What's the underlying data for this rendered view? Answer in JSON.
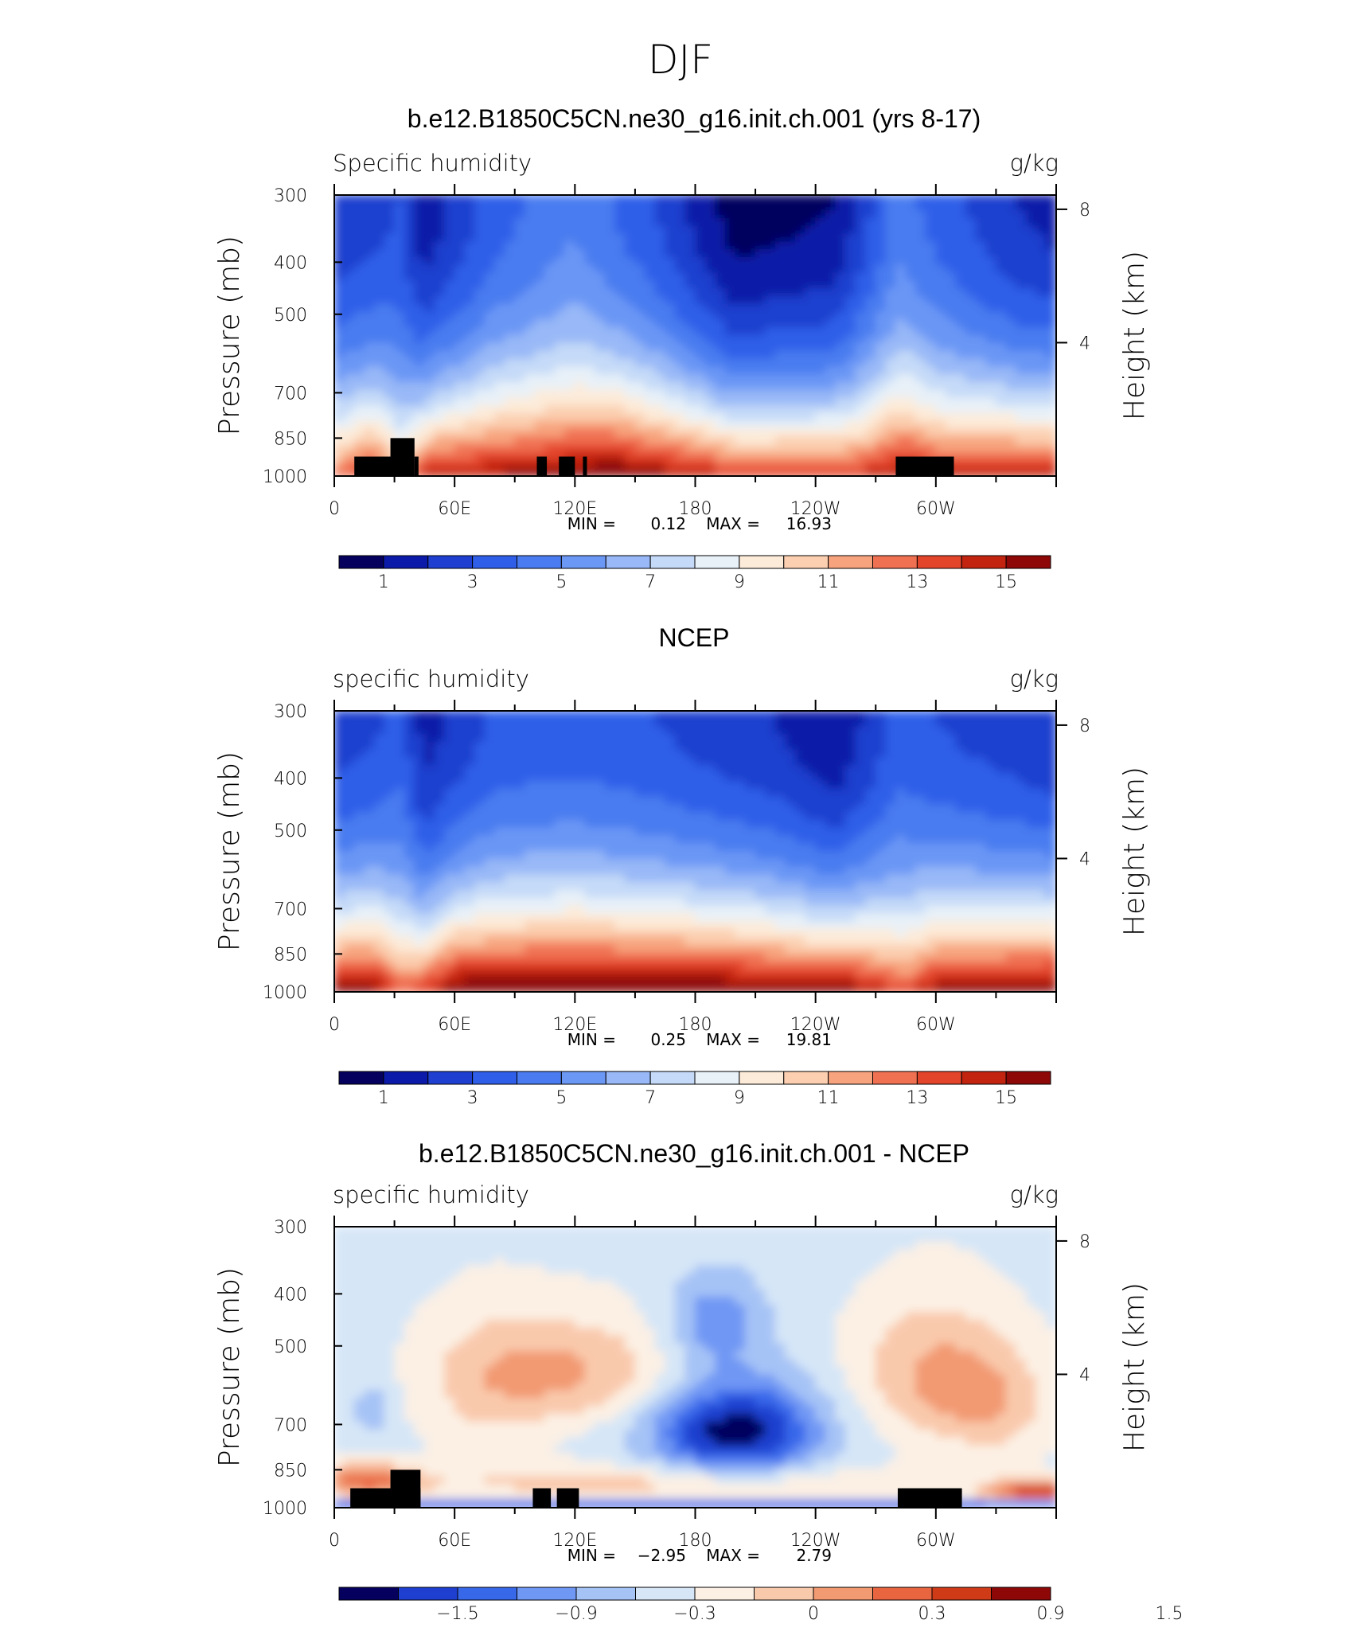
{
  "title": "DJF",
  "colors": {
    "abs": [
      "#05005e",
      "#0b1aa8",
      "#1e3fcf",
      "#2f5ee8",
      "#4a7bf0",
      "#6b97f5",
      "#98b8f7",
      "#c5daf8",
      "#e8f1f8",
      "#fdebd9",
      "#fbcfb0",
      "#f7a47e",
      "#f07152",
      "#e3452b",
      "#c3240f",
      "#8e0808"
    ],
    "diff": [
      "#05005e",
      "#1e3fcf",
      "#3868ea",
      "#6f97f4",
      "#a6c3f6",
      "#d6e6f7",
      "#fcf0e4",
      "#f9c9ac",
      "#f29a72",
      "#e8653f",
      "#cf3a17",
      "#8e0808"
    ],
    "land": "#000000"
  },
  "common": {
    "pressure_ticks": [
      "300",
      "400",
      "500",
      "700",
      "850",
      "1000"
    ],
    "height_ticks": [
      "8",
      "4"
    ],
    "lon_ticks": [
      "0",
      "60E",
      "120E",
      "180",
      "120W",
      "60W"
    ],
    "ylabel": "Pressure (mb)",
    "ylabel_right": "Height (km)",
    "units": "g/kg"
  },
  "chart_data": [
    {
      "type": "heatmap",
      "title": "b.e12.B1850C5CN.ne30_g16.init.ch.001 (yrs 8-17)",
      "field": "Specific humidity",
      "units": "g/kg",
      "x_range": [
        0,
        360
      ],
      "y_range_mb": [
        300,
        1000
      ],
      "min": "0.12",
      "max": "16.93",
      "min_label": "MIN =",
      "max_label": "MAX =",
      "colorbar_labels": [
        "1",
        "3",
        "5",
        "7",
        "9",
        "11",
        "13",
        "15"
      ],
      "surface_values": [
        [
          0,
          12.5
        ],
        [
          20,
          14.5
        ],
        [
          33,
          11
        ],
        [
          40,
          13
        ],
        [
          50,
          15
        ],
        [
          90,
          15.5
        ],
        [
          140,
          16.5
        ],
        [
          200,
          14
        ],
        [
          260,
          14
        ],
        [
          285,
          15.5
        ],
        [
          300,
          14.5
        ],
        [
          359,
          15
        ]
      ],
      "upper_values": [
        [
          0,
          2.2
        ],
        [
          20,
          2.6
        ],
        [
          33,
          3.0
        ],
        [
          45,
          1.2
        ],
        [
          80,
          3.5
        ],
        [
          120,
          4.8
        ],
        [
          160,
          3.0
        ],
        [
          200,
          0.4
        ],
        [
          250,
          1.0
        ],
        [
          282,
          4.5
        ],
        [
          300,
          3.6
        ],
        [
          340,
          2.0
        ],
        [
          359,
          1.6
        ]
      ],
      "orography": [
        [
          10,
          30,
          1000,
          920
        ],
        [
          28,
          40,
          1000,
          850
        ],
        [
          40,
          42,
          1000,
          920
        ],
        [
          101,
          106,
          1000,
          920
        ],
        [
          112,
          120,
          1000,
          920
        ],
        [
          124,
          126,
          1000,
          920
        ],
        [
          280,
          309,
          1000,
          920
        ]
      ]
    },
    {
      "type": "heatmap",
      "title": "NCEP",
      "field": "specific humidity",
      "units": "g/kg",
      "x_range": [
        0,
        360
      ],
      "y_range_mb": [
        300,
        1000
      ],
      "min": "0.25",
      "max": "19.81",
      "min_label": "MIN =",
      "max_label": "MAX =",
      "colorbar_labels": [
        "1",
        "3",
        "5",
        "7",
        "9",
        "11",
        "13",
        "15"
      ],
      "surface_values": [
        [
          0,
          15.5
        ],
        [
          20,
          16
        ],
        [
          33,
          13
        ],
        [
          45,
          14
        ],
        [
          60,
          16.5
        ],
        [
          120,
          17
        ],
        [
          200,
          16.5
        ],
        [
          260,
          15.5
        ],
        [
          285,
          13.5
        ],
        [
          300,
          15.5
        ],
        [
          359,
          16.5
        ]
      ],
      "upper_values": [
        [
          0,
          2.4
        ],
        [
          20,
          2.8
        ],
        [
          33,
          3.5
        ],
        [
          45,
          1.5
        ],
        [
          80,
          3.2
        ],
        [
          120,
          3.4
        ],
        [
          160,
          3.0
        ],
        [
          220,
          2.0
        ],
        [
          250,
          1.0
        ],
        [
          282,
          3.4
        ],
        [
          300,
          3.0
        ],
        [
          340,
          2.4
        ],
        [
          359,
          2.0
        ]
      ],
      "orography": []
    },
    {
      "type": "heatmap",
      "title": "b.e12.B1850C5CN.ne30_g16.init.ch.001 - NCEP",
      "field": "specific humidity",
      "units": "g/kg",
      "x_range": [
        0,
        360
      ],
      "y_range_mb": [
        300,
        1000
      ],
      "min": "−2.95",
      "max": "2.79",
      "min_label": "MIN =",
      "max_label": "MAX =",
      "colorbar_labels": [
        "−1.5",
        "−0.9",
        "−0.3",
        "0",
        "0.3",
        "0.9",
        "1.5"
      ],
      "diff_blobs": [
        {
          "lon": 120,
          "p": 560,
          "rx": 55,
          "rp": 130,
          "v": 0.7
        },
        {
          "lon": 75,
          "p": 600,
          "rx": 35,
          "rp": 200,
          "v": 0.35
        },
        {
          "lon": 298,
          "p": 560,
          "rx": 40,
          "rp": 170,
          "v": 0.7
        },
        {
          "lon": 330,
          "p": 650,
          "rx": 30,
          "rp": 150,
          "v": 0.5
        },
        {
          "lon": 200,
          "p": 720,
          "rx": 42,
          "rp": 150,
          "v": -1.6
        },
        {
          "lon": 190,
          "p": 450,
          "rx": 25,
          "rp": 90,
          "v": -0.7
        },
        {
          "lon": 15,
          "p": 890,
          "rx": 25,
          "rp": 60,
          "v": 1.1
        },
        {
          "lon": 350,
          "p": 930,
          "rx": 25,
          "rp": 40,
          "v": 1.5
        },
        {
          "lon": 160,
          "p": 900,
          "rx": 130,
          "rp": 70,
          "v": 0.55
        },
        {
          "lon": 20,
          "p": 660,
          "rx": 10,
          "rp": 80,
          "v": -0.45
        }
      ],
      "orography": [
        [
          8,
          30,
          1000,
          920
        ],
        [
          28,
          43,
          1000,
          850
        ],
        [
          40,
          43,
          1000,
          920
        ],
        [
          99,
          108,
          1000,
          920
        ],
        [
          111,
          122,
          1000,
          920
        ],
        [
          281,
          313,
          1000,
          920
        ]
      ]
    }
  ]
}
